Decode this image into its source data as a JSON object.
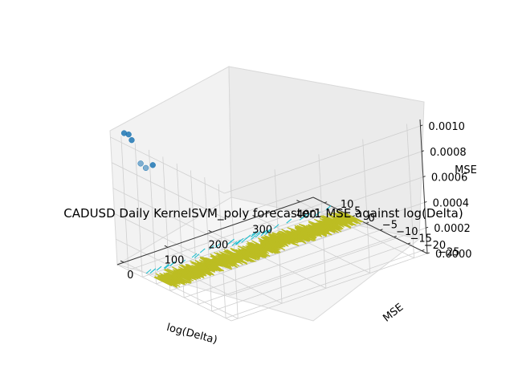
{
  "chart_data": {
    "type": "3d-scatter-surface",
    "title": "CADUSD Daily KernelSVM_poly forecaster1 MSE against log(Delta)",
    "xlabel": "log(Delta)",
    "ylabel": "MSE",
    "zlabel": "MSE",
    "x_ticks": [
      "0",
      "100",
      "200",
      "300",
      "400"
    ],
    "y_ticks": [
      "−25",
      "−20",
      "−15",
      "−10",
      "−5",
      "0",
      "5",
      "10"
    ],
    "z_ticks": [
      "0.0000",
      "0.0002",
      "0.0004",
      "0.0006",
      "0.0008",
      "0.0010"
    ],
    "xlim": [
      -15,
      430
    ],
    "ylim": [
      -27,
      14
    ],
    "zlim": [
      0,
      0.00105
    ],
    "grid": true,
    "scatter": {
      "color": "#1f77b4",
      "points": [
        {
          "x": 2,
          "y": 9,
          "z": 0.00101
        },
        {
          "x": 4,
          "y": 12,
          "z": 0.00103
        },
        {
          "x": 20,
          "y": 13,
          "z": 0.00099
        },
        {
          "x": 40,
          "y": 8,
          "z": 0.00078
        },
        {
          "x": 1,
          "y": 6,
          "z": 0.00086
        },
        {
          "x": 6,
          "y": 5,
          "z": 0.00083
        }
      ]
    },
    "surface": {
      "color": "#bcbd22",
      "edge_color": "#17becf",
      "x_range": [
        0,
        430
      ],
      "y_range": [
        -3,
        3
      ],
      "z_value": 0
    }
  }
}
